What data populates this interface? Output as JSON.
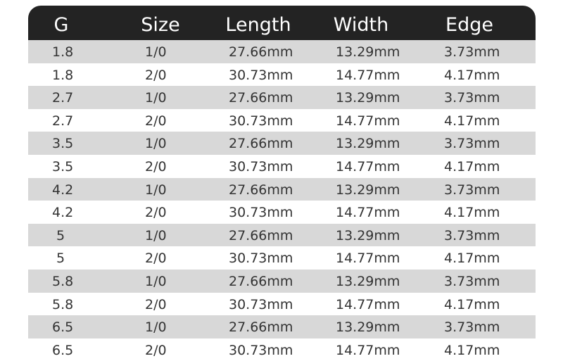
{
  "chart_data": {
    "type": "table",
    "columns": [
      "G",
      "Size",
      "Length",
      "Width",
      "Edge"
    ],
    "rows": [
      [
        "1.8",
        "1/0",
        "27.66mm",
        "13.29mm",
        "3.73mm"
      ],
      [
        "1.8",
        "2/0",
        "30.73mm",
        "14.77mm",
        "4.17mm"
      ],
      [
        "2.7",
        "1/0",
        "27.66mm",
        "13.29mm",
        "3.73mm"
      ],
      [
        "2.7",
        "2/0",
        "30.73mm",
        "14.77mm",
        "4.17mm"
      ],
      [
        "3.5",
        "1/0",
        "27.66mm",
        "13.29mm",
        "3.73mm"
      ],
      [
        "3.5",
        "2/0",
        "30.73mm",
        "14.77mm",
        "4.17mm"
      ],
      [
        "4.2",
        "1/0",
        "27.66mm",
        "13.29mm",
        "3.73mm"
      ],
      [
        "4.2",
        "2/0",
        "30.73mm",
        "14.77mm",
        "4.17mm"
      ],
      [
        "5",
        "1/0",
        "27.66mm",
        "13.29mm",
        "3.73mm"
      ],
      [
        "5",
        "2/0",
        "30.73mm",
        "14.77mm",
        "4.17mm"
      ],
      [
        "5.8",
        "1/0",
        "27.66mm",
        "13.29mm",
        "3.73mm"
      ],
      [
        "5.8",
        "2/0",
        "30.73mm",
        "14.77mm",
        "4.17mm"
      ],
      [
        "6.5",
        "1/0",
        "27.66mm",
        "13.29mm",
        "3.73mm"
      ],
      [
        "6.5",
        "2/0",
        "30.73mm",
        "14.77mm",
        "4.17mm"
      ]
    ],
    "colors": {
      "header_bg": "#232323",
      "header_text": "#ffffff",
      "stripe": "#d8d8d8"
    }
  }
}
